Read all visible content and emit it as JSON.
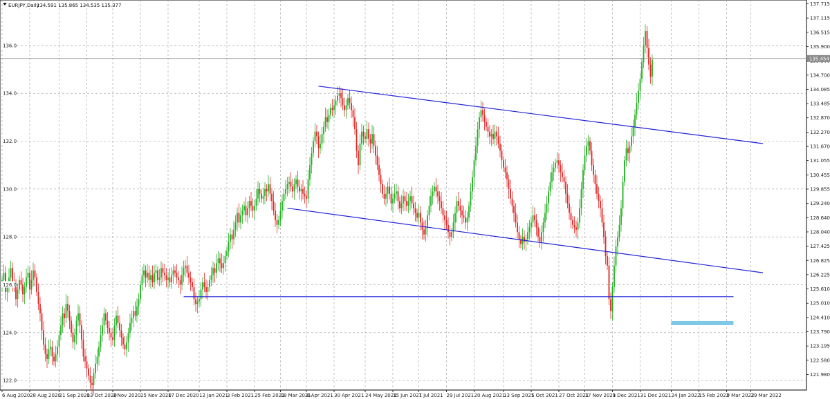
{
  "chart_data": {
    "type": "candlestick",
    "title": "EURJPY,Daily",
    "ohlc_header": "134.591 135.865 134.535 135.377",
    "current_price_label": "135.454",
    "ylim": [
      121.6,
      137.9
    ],
    "grid": true,
    "y_ticks_left": [
      {
        "value": 136.0,
        "label": "136.0"
      },
      {
        "value": 134.0,
        "label": "134.0"
      },
      {
        "value": 132.0,
        "label": "132.0"
      },
      {
        "value": 130.0,
        "label": "130.0"
      },
      {
        "value": 128.0,
        "label": "128.0"
      },
      {
        "value": 126.0,
        "label": "126.0"
      },
      {
        "value": 124.0,
        "label": "124.0"
      },
      {
        "value": 122.0,
        "label": "122.0"
      }
    ],
    "y_ticks_right": [
      "137.715",
      "137.115",
      "136.515",
      "135.900",
      "135.300",
      "134.700",
      "134.085",
      "133.485",
      "132.870",
      "132.270",
      "131.670",
      "131.055",
      "130.455",
      "129.855",
      "129.240",
      "128.640",
      "128.040",
      "127.425",
      "126.825",
      "126.225",
      "125.610",
      "125.010",
      "124.410",
      "123.790",
      "123.195",
      "122.580",
      "121.980"
    ],
    "x_ticks": [
      "6 Aug 2020",
      "28 Aug 2020",
      "21 Sep 2020",
      "13 Oct 2020",
      "3 Nov 2020",
      "25 Nov 2020",
      "17 Dec 2020",
      "12 Jan 2021",
      "3 Feb 2021",
      "25 Feb 2021",
      "18 Mar 2021",
      "8 Apr 2021",
      "30 Apr 2021",
      "24 May 2021",
      "15 Jun 2021",
      "7 Jul 2021",
      "29 Jul 2021",
      "20 Aug 2021",
      "13 Sep 2021",
      "5 Oct 2021",
      "27 Oct 2021",
      "17 Nov 2021",
      "9 Dec 2021",
      "31 Dec 2021",
      "24 Jan 2022",
      "15 Feb 2022",
      "9 Mar 2022",
      "29 Mar 2022"
    ],
    "x_tick_bar_index": [
      0,
      16,
      33,
      49,
      64,
      80,
      96,
      114,
      130,
      146,
      161,
      176,
      192,
      210,
      226,
      241,
      257,
      273,
      290,
      306,
      322,
      337,
      353,
      369,
      387,
      403,
      419,
      433
    ],
    "closes": [
      126.2,
      126.5,
      125.7,
      125.9,
      126.3,
      126.7,
      126.1,
      125.9,
      125.4,
      125.8,
      126.2,
      126.0,
      125.6,
      125.9,
      126.3,
      126.5,
      125.8,
      126.2,
      126.6,
      126.3,
      125.7,
      125.2,
      124.8,
      124.1,
      123.5,
      123.1,
      122.9,
      123.3,
      123.4,
      123.0,
      122.8,
      123.1,
      123.4,
      123.9,
      124.3,
      124.8,
      124.6,
      125.2,
      124.9,
      124.5,
      124.0,
      123.6,
      123.9,
      124.5,
      124.8,
      124.3,
      123.7,
      123.0,
      122.8,
      122.5,
      122.2,
      121.9,
      121.8,
      122.3,
      122.7,
      123.0,
      123.4,
      123.9,
      124.3,
      124.8,
      124.5,
      124.2,
      124.0,
      123.8,
      123.7,
      124.3,
      124.7,
      124.4,
      124.1,
      123.8,
      123.5,
      123.3,
      123.6,
      124.0,
      124.4,
      124.6,
      124.9,
      124.7,
      125.1,
      125.4,
      126.0,
      126.4,
      126.6,
      126.3,
      126.5,
      126.2,
      126.4,
      126.1,
      126.5,
      126.6,
      126.2,
      126.3,
      126.7,
      126.5,
      126.4,
      126.2,
      126.3,
      126.1,
      126.4,
      126.6,
      126.5,
      126.3,
      126.2,
      126.0,
      126.4,
      126.7,
      126.8,
      126.5,
      126.3,
      126.1,
      125.9,
      125.4,
      125.2,
      125.3,
      125.4,
      125.8,
      126.1,
      125.9,
      125.7,
      125.9,
      126.2,
      126.4,
      126.7,
      126.5,
      126.9,
      127.1,
      126.9,
      126.7,
      126.9,
      127.2,
      127.4,
      127.8,
      128.1,
      127.9,
      128.3,
      128.6,
      129.0,
      128.6,
      128.9,
      129.1,
      129.3,
      128.9,
      129.2,
      129.5,
      129.3,
      129.1,
      129.3,
      129.6,
      130.0,
      129.8,
      129.6,
      129.7,
      130.0,
      129.9,
      130.2,
      129.8,
      129.5,
      129.1,
      128.7,
      128.5,
      128.7,
      129.1,
      129.5,
      129.8,
      130.0,
      130.2,
      130.3,
      130.1,
      129.9,
      130.2,
      130.4,
      130.1,
      129.9,
      130.0,
      129.8,
      129.7,
      129.6,
      130.4,
      131.0,
      131.5,
      132.0,
      132.4,
      132.2,
      131.7,
      131.9,
      132.3,
      132.6,
      133.0,
      132.8,
      133.1,
      133.4,
      133.3,
      133.5,
      133.7,
      133.9,
      134.0,
      133.8,
      133.5,
      133.3,
      133.5,
      133.8,
      133.6,
      133.3,
      133.0,
      132.5,
      131.6,
      131.0,
      131.9,
      132.4,
      132.2,
      132.1,
      132.5,
      132.1,
      131.9,
      132.3,
      131.8,
      131.4,
      131.0,
      130.6,
      130.2,
      129.8,
      129.6,
      129.8,
      130.1,
      129.8,
      129.4,
      129.6,
      129.8,
      129.9,
      129.5,
      129.2,
      129.4,
      129.7,
      129.5,
      129.3,
      129.5,
      129.7,
      129.4,
      129.2,
      129.0,
      128.8,
      129.0,
      128.6,
      128.3,
      128.1,
      128.4,
      128.9,
      129.3,
      129.7,
      129.9,
      130.1,
      129.9,
      129.7,
      129.5,
      129.2,
      128.9,
      128.7,
      128.5,
      128.2,
      128.0,
      128.2,
      128.6,
      129.0,
      129.5,
      129.3,
      129.1,
      128.9,
      128.8,
      128.6,
      128.8,
      129.3,
      129.9,
      130.5,
      131.2,
      131.8,
      132.5,
      133.0,
      133.3,
      133.1,
      132.8,
      132.6,
      132.4,
      132.2,
      132.3,
      132.1,
      132.4,
      132.2,
      131.9,
      131.6,
      131.2,
      130.9,
      130.7,
      130.4,
      130.0,
      129.6,
      129.3,
      129.0,
      128.6,
      128.2,
      127.9,
      127.7,
      128.0,
      127.8,
      127.9,
      128.2,
      128.4,
      128.6,
      128.9,
      128.7,
      128.4,
      128.0,
      127.8,
      128.2,
      128.6,
      129.0,
      129.4,
      129.9,
      130.3,
      130.7,
      130.9,
      131.1,
      131.2,
      131.0,
      130.7,
      130.5,
      130.3,
      129.8,
      129.4,
      129.0,
      128.7,
      128.5,
      128.4,
      128.3,
      128.6,
      129.2,
      130.0,
      130.8,
      131.4,
      131.8,
      132.0,
      131.6,
      131.0,
      130.6,
      130.2,
      129.8,
      129.5,
      129.2,
      128.6,
      128.0,
      127.2,
      126.8,
      125.4,
      124.9,
      125.9,
      126.8,
      127.6,
      128.0,
      128.5,
      129.2,
      130.3,
      131.2,
      131.7,
      131.5,
      131.8,
      132.2,
      132.6,
      133.1,
      133.6,
      134.1,
      134.6,
      135.3,
      136.0,
      136.6,
      135.9,
      135.2,
      134.7,
      135.4
    ]
  },
  "annotations": {
    "upper_channel": [
      [
        183,
        134.3
      ],
      [
        440,
        131.9
      ]
    ],
    "lower_channel": [
      [
        165,
        129.2
      ],
      [
        440,
        126.5
      ]
    ],
    "support": [
      [
        105,
        125.5
      ],
      [
        423,
        125.5
      ]
    ],
    "target_price": 124.4,
    "target_range": [
      387,
      423
    ]
  },
  "colors": {
    "bull": "#1fae1f",
    "bear": "#e02424",
    "trendline": "#2020d8",
    "target_box": "#7ec8e8",
    "current_price_line": "#8a8a8a",
    "label_box": "#8a8a8a"
  }
}
